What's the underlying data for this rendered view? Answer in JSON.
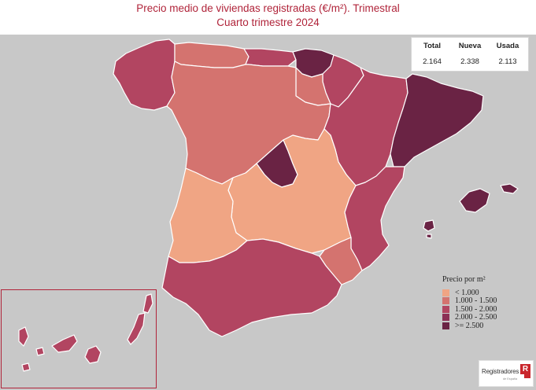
{
  "title": {
    "line1": "Precio medio de viviendas registradas (€/m²). Trimestral",
    "line2": "Cuarto trimestre 2024"
  },
  "stats": {
    "headers": [
      "Total",
      "Nueva",
      "Usada"
    ],
    "values": [
      "2.164",
      "2.338",
      "2.113"
    ]
  },
  "legend": {
    "title": "Precio por m²",
    "items": [
      {
        "label": "< 1.000",
        "color": "#f0a584"
      },
      {
        "label": "1.000 - 1.500",
        "color": "#d4736f"
      },
      {
        "label": "1.500 - 2.000",
        "color": "#b24561"
      },
      {
        "label": "2.000 - 2.500",
        "color": "#8c2f55"
      },
      {
        "label": ">= 2.500",
        "color": "#6a2344"
      }
    ]
  },
  "logo": {
    "text": "Registradores",
    "subtext": "de España",
    "mark": "R"
  },
  "colors": {
    "sea": "#c8c8c8",
    "border": "#ffffff",
    "title": "#b0243a"
  },
  "regions": [
    {
      "name": "Galicia",
      "price_band": "1.500 - 2.000"
    },
    {
      "name": "Asturias",
      "price_band": "1.000 - 1.500"
    },
    {
      "name": "Cantabria",
      "price_band": "1.500 - 2.000"
    },
    {
      "name": "País Vasco",
      "price_band": ">= 2.500"
    },
    {
      "name": "Navarra",
      "price_band": "1.500 - 2.000"
    },
    {
      "name": "La Rioja",
      "price_band": "1.000 - 1.500"
    },
    {
      "name": "Aragón",
      "price_band": "1.500 - 2.000"
    },
    {
      "name": "Cataluña",
      "price_band": ">= 2.500"
    },
    {
      "name": "Castilla y León",
      "price_band": "1.000 - 1.500"
    },
    {
      "name": "Madrid",
      "price_band": ">= 2.500"
    },
    {
      "name": "Castilla-La Mancha",
      "price_band": "< 1.000"
    },
    {
      "name": "Extremadura",
      "price_band": "< 1.000"
    },
    {
      "name": "Comunidad Valenciana",
      "price_band": "1.500 - 2.000"
    },
    {
      "name": "Región de Murcia",
      "price_band": "1.000 - 1.500"
    },
    {
      "name": "Andalucía",
      "price_band": "1.500 - 2.000"
    },
    {
      "name": "Illes Balears",
      "price_band": ">= 2.500"
    },
    {
      "name": "Canarias",
      "price_band": "1.500 - 2.000"
    }
  ]
}
